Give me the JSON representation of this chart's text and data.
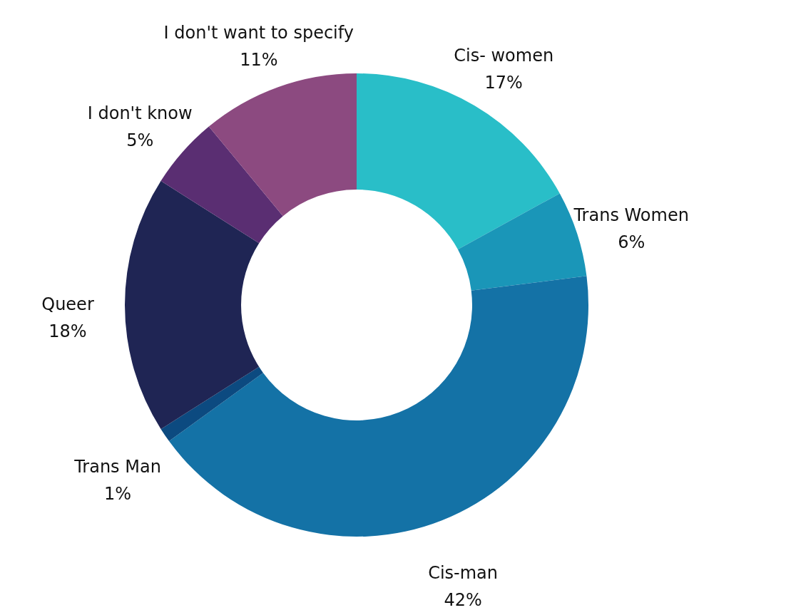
{
  "chart_data": {
    "type": "donut",
    "categories": [
      "Cis- women",
      "Trans Women",
      "Cis-man",
      "Trans Man",
      "Queer",
      "I don't know",
      "I don't want to specify"
    ],
    "values": [
      17,
      6,
      42,
      1,
      18,
      5,
      11
    ],
    "value_labels": [
      "17%",
      "6%",
      "42%",
      "1%",
      "18%",
      "5%",
      "11%"
    ],
    "colors": [
      "#29bec8",
      "#1a96b8",
      "#1472a6",
      "#0c4a80",
      "#1f2554",
      "#5a2e72",
      "#8c4a80"
    ],
    "legend": false
  }
}
